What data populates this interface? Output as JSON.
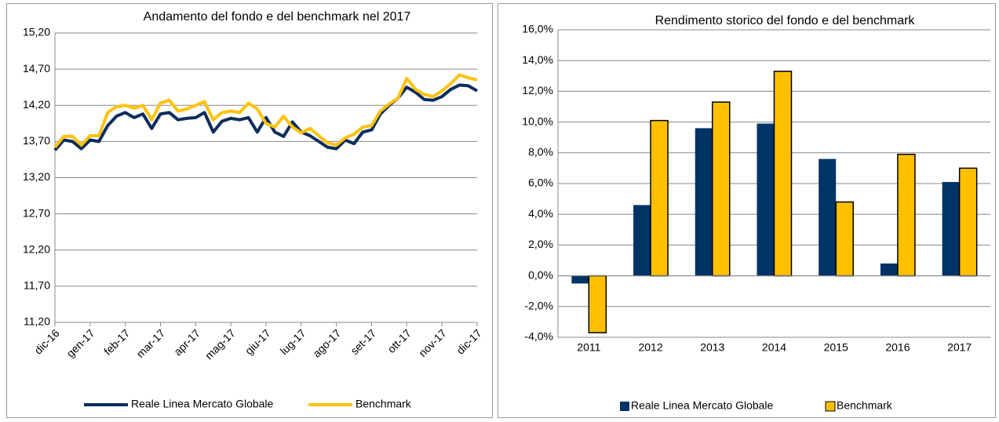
{
  "chart_data": [
    {
      "type": "line",
      "title": "Andamento del fondo e del benchmark nel 2017",
      "categories": [
        "dic-16",
        null,
        null,
        null,
        "gen-17",
        null,
        null,
        null,
        "feb-17",
        null,
        null,
        null,
        "mar-17",
        null,
        null,
        null,
        "apr-17",
        null,
        null,
        null,
        "mag-17",
        null,
        null,
        null,
        "giu-17",
        null,
        null,
        null,
        "lug-17",
        null,
        null,
        null,
        "ago-17",
        null,
        null,
        null,
        "set-17",
        null,
        null,
        null,
        "ott-17",
        null,
        null,
        null,
        "nov-17",
        null,
        null,
        null,
        "dic-17"
      ],
      "series": [
        {
          "name": "Reale Linea Mercato Globale",
          "color": "#0b2d5b",
          "values": [
            13.58,
            13.72,
            13.7,
            13.6,
            13.72,
            13.7,
            13.92,
            14.05,
            14.1,
            14.03,
            14.08,
            13.88,
            14.08,
            14.1,
            14.0,
            14.02,
            14.03,
            14.1,
            13.83,
            13.98,
            14.02,
            14.0,
            14.03,
            13.83,
            14.03,
            13.83,
            13.77,
            13.97,
            13.83,
            13.78,
            13.7,
            13.62,
            13.6,
            13.72,
            13.67,
            13.83,
            13.86,
            14.08,
            14.2,
            14.3,
            14.45,
            14.38,
            14.28,
            14.27,
            14.32,
            14.42,
            14.48,
            14.47,
            14.4
          ]
        },
        {
          "name": "Benchmark",
          "color": "#ffc20e",
          "values": [
            13.62,
            13.77,
            13.77,
            13.65,
            13.78,
            13.78,
            14.1,
            14.18,
            14.2,
            14.16,
            14.2,
            14.0,
            14.23,
            14.27,
            14.12,
            14.15,
            14.2,
            14.25,
            14.0,
            14.1,
            14.12,
            14.1,
            14.23,
            14.15,
            13.95,
            13.9,
            14.05,
            13.9,
            13.82,
            13.88,
            13.78,
            13.68,
            13.65,
            13.75,
            13.8,
            13.9,
            13.92,
            14.12,
            14.22,
            14.3,
            14.57,
            14.42,
            14.35,
            14.32,
            14.4,
            14.5,
            14.62,
            14.58,
            14.55
          ]
        }
      ],
      "ylim": [
        11.2,
        15.2
      ],
      "yticks": [
        {
          "value": 11.2,
          "label": "11,20"
        },
        {
          "value": 11.7,
          "label": "11,70"
        },
        {
          "value": 12.2,
          "label": "12,20"
        },
        {
          "value": 12.7,
          "label": "12,70"
        },
        {
          "value": 13.2,
          "label": "13,20"
        },
        {
          "value": 13.7,
          "label": "13,70"
        },
        {
          "value": 14.2,
          "label": "14,20"
        },
        {
          "value": 14.7,
          "label": "14,70"
        },
        {
          "value": 15.2,
          "label": "15,20"
        }
      ],
      "grid": true
    },
    {
      "type": "bar",
      "title": "Rendimento storico del fondo e del benchmark",
      "categories": [
        "2011",
        "2012",
        "2013",
        "2014",
        "2015",
        "2016",
        "2017"
      ],
      "series": [
        {
          "name": "Reale Linea Mercato Globale",
          "color": "#003366",
          "values": [
            -0.5,
            4.6,
            9.6,
            9.9,
            7.6,
            0.8,
            6.1
          ]
        },
        {
          "name": "Benchmark",
          "color": "#ffc000",
          "values": [
            -3.7,
            10.1,
            11.3,
            13.3,
            4.8,
            7.9,
            7.0
          ]
        }
      ],
      "ylim": [
        -4,
        16
      ],
      "yticks": [
        {
          "value": -4,
          "label": "-4,0%"
        },
        {
          "value": -2,
          "label": "-2,0%"
        },
        {
          "value": 0,
          "label": "0,0%"
        },
        {
          "value": 2,
          "label": "2,0%"
        },
        {
          "value": 4,
          "label": "4,0%"
        },
        {
          "value": 6,
          "label": "6,0%"
        },
        {
          "value": 8,
          "label": "8,0%"
        },
        {
          "value": 10,
          "label": "10,0%"
        },
        {
          "value": 12,
          "label": "12,0%"
        },
        {
          "value": 14,
          "label": "14,0%"
        },
        {
          "value": 16,
          "label": "16,0%"
        }
      ],
      "grid": true
    }
  ]
}
